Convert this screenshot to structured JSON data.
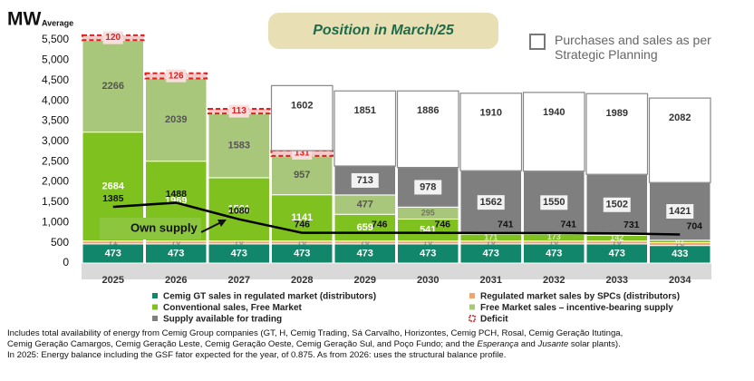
{
  "chart_data": {
    "type": "bar",
    "stacked": true,
    "title": "Position in March/25",
    "y_label": "MW",
    "y_label_sub": "Average",
    "categories": [
      "2025",
      "2026",
      "2027",
      "2028",
      "2029",
      "2030",
      "2031",
      "2032",
      "2033",
      "2034"
    ],
    "series": [
      {
        "name": "Cemig GT sales in regulated market (distributors)",
        "color": "#12866a",
        "label_color": "#ffffff",
        "values": [
          473,
          473,
          473,
          473,
          473,
          473,
          473,
          473,
          473,
          433
        ]
      },
      {
        "name": "Regulated market sales by SPCs (distributors)",
        "color": "#f2a46a",
        "label_color": "#7a7a7a",
        "values": [
          71,
          70,
          70,
          70,
          70,
          70,
          70,
          70,
          70,
          70
        ]
      },
      {
        "name": "Conventional sales, Free Market",
        "color": "#7fc21f",
        "label_color": "#ffffff",
        "values": [
          2684,
          1969,
          1561,
          1141,
          659,
          541,
          171,
          173,
          142,
          61
        ]
      },
      {
        "name": "Free Market sales – incentive-bearing supply",
        "color": "#a9c77a",
        "label_color": "#555555",
        "values": [
          2266,
          2039,
          1583,
          957,
          477,
          295,
          null,
          null,
          null,
          null
        ]
      },
      {
        "name": "Supply available for trading",
        "color": "#7f7f7f",
        "label_color": "#333333",
        "values": [
          null,
          null,
          null,
          null,
          713,
          978,
          1562,
          1550,
          1502,
          1421
        ]
      },
      {
        "name": "Deficit",
        "color": "#e02020",
        "label_color": "#e02020",
        "dashed": true,
        "values": [
          120,
          126,
          113,
          131,
          null,
          null,
          null,
          null,
          null,
          null
        ]
      },
      {
        "name": "Purchases and sales as per Strategic Planning",
        "color": "#ffffff",
        "label_color": "#333333",
        "values": [
          null,
          null,
          null,
          1602,
          1851,
          1886,
          1910,
          1940,
          1989,
          2082
        ]
      }
    ],
    "line": {
      "name": "Own supply",
      "color": "#000000",
      "values": [
        1385,
        1488,
        1080,
        746,
        746,
        746,
        741,
        741,
        731,
        704
      ]
    },
    "ylim": [
      0,
      5500
    ],
    "yticks": [
      0,
      500,
      {
        "value": 1000,
        "label": "1,000"
      },
      {
        "value": 1500,
        "label": "1,500"
      },
      {
        "value": 2000,
        "label": "2,000"
      },
      {
        "value": 2500,
        "label": "2,500"
      },
      {
        "value": 3000,
        "label": "3,000"
      },
      {
        "value": 3500,
        "label": "3,500"
      },
      {
        "value": 4000,
        "label": "4,000"
      },
      {
        "value": 4500,
        "label": "4,500"
      },
      {
        "value": 5000,
        "label": "5,000"
      },
      {
        "value": 5500,
        "label": "5,500"
      }
    ],
    "footnote": [
      [
        "Includes total availability of energy from Cemig Group companies (GT, H, Cemig Trading, Sá Carvalho, Horizontes, Cemig PCH, Rosal, Cemig Geração Itutinga,"
      ],
      [
        "Cemig Geração Camargos, Cemig Geração Leste, Cemig Geração Oeste, Cemig Geração Sul, and Poço Fundo; and the ",
        "Esperança",
        " and ",
        "Jusante",
        " solar plants)."
      ],
      [
        "In 2025: Energy balance including the GSF fator expected for the year, of 0.875. As from 2026: uses the structural balance profile."
      ]
    ]
  }
}
